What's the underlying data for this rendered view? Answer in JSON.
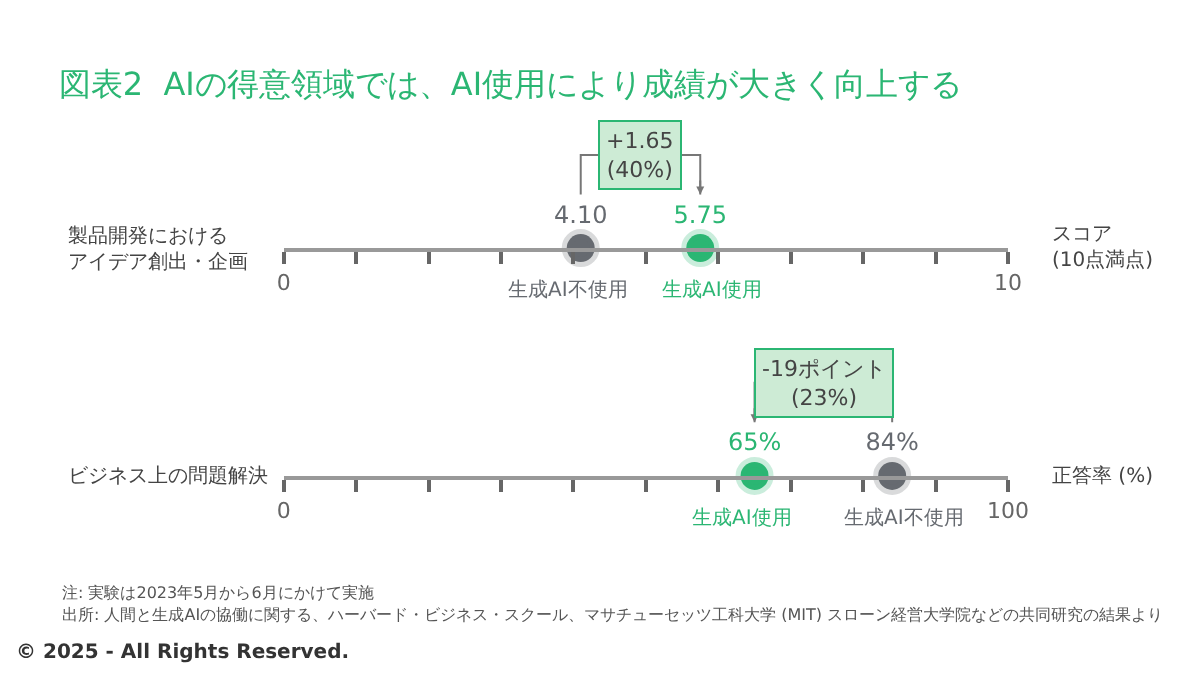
{
  "chart_data": [
    {
      "type": "scatter",
      "title": "図表2  AIの得意領域では、AI使用により成績が大きく向上する",
      "orientation": "horizontal",
      "categories": [
        "製品開発におけるアイデア創出・企画"
      ],
      "xlabel": "スコア\n(10点満点)",
      "xlim": [
        0,
        10
      ],
      "xticks": [
        0,
        {
          "value": 1,
          "label": null
        },
        {
          "value": 2,
          "label": null
        },
        {
          "value": 3,
          "label": null
        },
        {
          "value": 4,
          "label": null
        },
        {
          "value": 5,
          "label": null
        },
        {
          "value": 6,
          "label": null
        },
        {
          "value": 7,
          "label": null
        },
        {
          "value": 8,
          "label": null
        },
        {
          "value": 9,
          "label": null
        },
        10
      ],
      "series": [
        {
          "name": "生成AI不使用",
          "color": "#666a70",
          "values": [
            4.1
          ],
          "value_labels": [
            "4.10"
          ]
        },
        {
          "name": "生成AI使用",
          "color": "#2bb673",
          "values": [
            5.75
          ],
          "value_labels": [
            "5.75"
          ]
        }
      ],
      "annotations": [
        "+1.65\n(40%)"
      ]
    },
    {
      "type": "scatter",
      "orientation": "horizontal",
      "categories": [
        "ビジネス上の問題解決"
      ],
      "xlabel": "正答率 (%)",
      "xlim": [
        0,
        100
      ],
      "xticks": [
        0,
        {
          "value": 10,
          "label": null
        },
        {
          "value": 20,
          "label": null
        },
        {
          "value": 30,
          "label": null
        },
        {
          "value": 40,
          "label": null
        },
        {
          "value": 50,
          "label": null
        },
        {
          "value": 60,
          "label": null
        },
        {
          "value": 70,
          "label": null
        },
        {
          "value": 80,
          "label": null
        },
        {
          "value": 90,
          "label": null
        },
        100
      ],
      "series": [
        {
          "name": "生成AI不使用",
          "color": "#666a70",
          "values": [
            84
          ],
          "value_labels": [
            "84%"
          ]
        },
        {
          "name": "生成AI使用",
          "color": "#2bb673",
          "values": [
            65
          ],
          "value_labels": [
            "65%"
          ]
        }
      ],
      "annotations": [
        "-19ポイント\n(23%)",
        "注: 実験は2023年5月から6月にかけて実施",
        "出所: 人間と生成AIの協働に関する、ハーバード・ビジネス・スクール、マサチューセッツ工科大学 (MIT) スローン経営大学院などの共同研究の結果より",
        "© 2025 - All Rights Reserved."
      ]
    }
  ]
}
